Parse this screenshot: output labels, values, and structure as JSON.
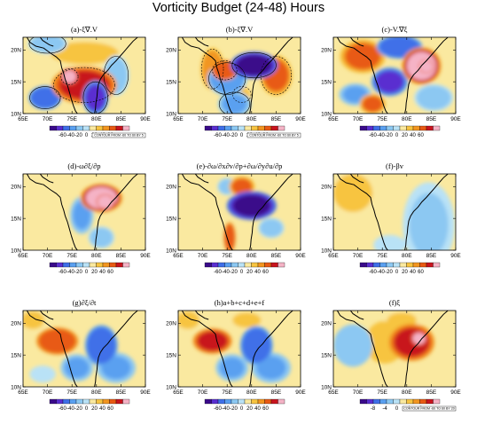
{
  "figure_title": "Vorticity Budget (24-48) Hours",
  "colors": {
    "scale": [
      "#3a0a8a",
      "#5a2fd0",
      "#3f6fe8",
      "#5aa0f0",
      "#8cc8f2",
      "#b9e2f6",
      "#fae9a0",
      "#f7c441",
      "#f29621",
      "#e85a14",
      "#c8141e",
      "#f5b3c6"
    ],
    "coast": "#000000"
  },
  "chart_data": [
    {
      "id": "a",
      "type": "heatmap",
      "title": "(a)-ξ∇.V",
      "x_ticks": [
        "65E",
        "70E",
        "75E",
        "80E",
        "85E",
        "90E"
      ],
      "y_ticks": [
        "10N",
        "15N",
        "20N"
      ],
      "colorbar_labels": [
        "-60",
        "-40",
        "-20",
        "0",
        "20",
        "40",
        "60"
      ],
      "contour_note": "CONTOUR FROM -60 TO 60 BY 5",
      "blobs": [
        {
          "lon": 77.5,
          "lat": 14.5,
          "value": 50,
          "rx": 5,
          "ry": 2.2
        },
        {
          "lon": 74.5,
          "lat": 15.8,
          "value": 65,
          "rx": 1.4,
          "ry": 1.0
        },
        {
          "lon": 77.5,
          "lat": 19.5,
          "value": 15,
          "rx": 6,
          "ry": 1.5
        },
        {
          "lon": 69.5,
          "lat": 12.5,
          "value": -45,
          "rx": 2.5,
          "ry": 1.4
        },
        {
          "lon": 79.8,
          "lat": 12.5,
          "value": -55,
          "rx": 2,
          "ry": 2
        },
        {
          "lon": 84,
          "lat": 16,
          "value": -20,
          "rx": 2,
          "ry": 2.4
        },
        {
          "lon": 70,
          "lat": 21,
          "value": -20,
          "rx": 3,
          "ry": 1.2
        }
      ]
    },
    {
      "id": "b",
      "type": "heatmap",
      "title": "(b)-ξ∇.V",
      "x_ticks": [
        "65E",
        "70E",
        "75E",
        "80E",
        "85E",
        "90E"
      ],
      "y_ticks": [
        "10N",
        "15N",
        "20N"
      ],
      "colorbar_labels": [
        "-60",
        "-40",
        "-20",
        "0",
        "20",
        "40",
        "60"
      ],
      "contour_note": "CONTOUR FROM -60 TO 60 BY 5",
      "blobs": [
        {
          "lon": 80.5,
          "lat": 17.6,
          "value": -62,
          "rx": 3.6,
          "ry": 1.6
        },
        {
          "lon": 75,
          "lat": 15.5,
          "value": -35,
          "rx": 3,
          "ry": 2
        },
        {
          "lon": 76.5,
          "lat": 11.5,
          "value": -25,
          "rx": 2.5,
          "ry": 1.5
        },
        {
          "lon": 74.5,
          "lat": 16.8,
          "value": 45,
          "rx": 2,
          "ry": 1.2
        },
        {
          "lon": 72,
          "lat": 17,
          "value": 30,
          "rx": 1.8,
          "ry": 2.5
        },
        {
          "lon": 85,
          "lat": 16,
          "value": 35,
          "rx": 2.5,
          "ry": 2.4
        },
        {
          "lon": 78,
          "lat": 13,
          "value": 20,
          "rx": 1.5,
          "ry": 1
        }
      ]
    },
    {
      "id": "c",
      "type": "heatmap",
      "title": "(c)-V.∇ξ",
      "x_ticks": [
        "65E",
        "70E",
        "75E",
        "80E",
        "85E",
        "90E"
      ],
      "y_ticks": [
        "10N",
        "15N",
        "20N"
      ],
      "colorbar_labels": [
        "-60",
        "-40",
        "-20",
        "0",
        "20",
        "40",
        "60"
      ],
      "blobs": [
        {
          "lon": 83,
          "lat": 17.5,
          "value": 60,
          "rx": 3,
          "ry": 2.2
        },
        {
          "lon": 84,
          "lat": 17.4,
          "value": 75,
          "rx": 1.2,
          "ry": 0.8
        },
        {
          "lon": 71,
          "lat": 19,
          "value": 40,
          "rx": 3.5,
          "ry": 2
        },
        {
          "lon": 76.5,
          "lat": 15,
          "value": -55,
          "rx": 2.8,
          "ry": 1.7
        },
        {
          "lon": 78.5,
          "lat": 20.5,
          "value": -45,
          "rx": 3.5,
          "ry": 1.4
        },
        {
          "lon": 69.5,
          "lat": 13,
          "value": -25,
          "rx": 2.5,
          "ry": 1.3
        },
        {
          "lon": 85.5,
          "lat": 12.5,
          "value": -20,
          "rx": 3,
          "ry": 1.6
        },
        {
          "lon": 73,
          "lat": 11.5,
          "value": 35,
          "rx": 2,
          "ry": 1.2
        }
      ]
    },
    {
      "id": "d",
      "type": "heatmap",
      "title": "(d)-ω∂ξ/∂p",
      "x_ticks": [
        "65E",
        "70E",
        "75E",
        "80E",
        "85E",
        "90E"
      ],
      "y_ticks": [
        "10N",
        "15N",
        "20N"
      ],
      "colorbar_labels": [
        "-60",
        "-40",
        "-20",
        "0",
        "20",
        "40",
        "60"
      ],
      "blobs": [
        {
          "lon": 81,
          "lat": 18.2,
          "value": 60,
          "rx": 3.2,
          "ry": 1.7
        },
        {
          "lon": 81.8,
          "lat": 17.6,
          "value": 75,
          "rx": 1.4,
          "ry": 0.9
        },
        {
          "lon": 77,
          "lat": 15.5,
          "value": -25,
          "rx": 1.8,
          "ry": 2.2
        },
        {
          "lon": 81,
          "lat": 12,
          "value": -15,
          "rx": 2,
          "ry": 1.3
        }
      ]
    },
    {
      "id": "e",
      "type": "heatmap",
      "title": "(e)-∂ω/∂x∂v/∂p+∂ω/∂y∂u/∂p",
      "x_ticks": [
        "65E",
        "70E",
        "75E",
        "80E",
        "85E",
        "90E"
      ],
      "y_ticks": [
        "10N",
        "15N",
        "20N"
      ],
      "colorbar_labels": [
        "-60",
        "-40",
        "-20",
        "0",
        "20",
        "40",
        "60"
      ],
      "blobs": [
        {
          "lon": 80,
          "lat": 17,
          "value": -65,
          "rx": 3.8,
          "ry": 1.7
        },
        {
          "lon": 75.5,
          "lat": 12,
          "value": 45,
          "rx": 0.9,
          "ry": 1.8
        },
        {
          "lon": 78,
          "lat": 20,
          "value": 35,
          "rx": 2,
          "ry": 1.2
        },
        {
          "lon": 75,
          "lat": 20,
          "value": -20,
          "rx": 1.5,
          "ry": 1
        },
        {
          "lon": 84,
          "lat": 13.5,
          "value": -15,
          "rx": 2,
          "ry": 1.2
        }
      ]
    },
    {
      "id": "f",
      "type": "heatmap",
      "title": "(f)-βv",
      "x_ticks": [
        "65E",
        "70E",
        "75E",
        "80E",
        "85E",
        "90E"
      ],
      "y_ticks": [
        "10N",
        "15N",
        "20N"
      ],
      "colorbar_labels": [
        "-60",
        "-40",
        "-20",
        "0",
        "20",
        "40",
        "60"
      ],
      "blobs": [
        {
          "lon": 69,
          "lat": 19,
          "value": 12,
          "rx": 4,
          "ry": 3
        },
        {
          "lon": 84.5,
          "lat": 14,
          "value": -12,
          "rx": 4,
          "ry": 5
        },
        {
          "lon": 76.5,
          "lat": 10.8,
          "value": -8,
          "rx": 2.5,
          "ry": 1.2
        }
      ]
    },
    {
      "id": "g",
      "type": "heatmap",
      "title": "(g)∂ξ/∂t",
      "x_ticks": [
        "65E",
        "70E",
        "75E",
        "80E",
        "85E",
        "90E"
      ],
      "y_ticks": [
        "10N",
        "15N",
        "20N"
      ],
      "colorbar_labels": [
        "-60",
        "-40",
        "-20",
        "0",
        "20",
        "40",
        "60"
      ],
      "blobs": [
        {
          "lon": 72,
          "lat": 17.2,
          "value": 45,
          "rx": 3.2,
          "ry": 1.6
        },
        {
          "lon": 81,
          "lat": 16.5,
          "value": -45,
          "rx": 2.5,
          "ry": 2.4
        },
        {
          "lon": 76,
          "lat": 13,
          "value": -25,
          "rx": 2.5,
          "ry": 1.6
        },
        {
          "lon": 84,
          "lat": 13,
          "value": -25,
          "rx": 3,
          "ry": 1.8
        },
        {
          "lon": 67,
          "lat": 20.5,
          "value": 15,
          "rx": 2,
          "ry": 1.2
        },
        {
          "lon": 69,
          "lat": 12,
          "value": -10,
          "rx": 2,
          "ry": 1
        }
      ]
    },
    {
      "id": "h",
      "type": "heatmap",
      "title": "(h)a+b+c+d+e+f",
      "x_ticks": [
        "65E",
        "70E",
        "75E",
        "80E",
        "85E",
        "90E"
      ],
      "y_ticks": [
        "10N",
        "15N",
        "20N"
      ],
      "colorbar_labels": [
        "-60",
        "-40",
        "-20",
        "0",
        "20",
        "40",
        "60"
      ],
      "blobs": [
        {
          "lon": 72,
          "lat": 17.2,
          "value": 50,
          "rx": 3,
          "ry": 1.5
        },
        {
          "lon": 81,
          "lat": 16.5,
          "value": -45,
          "rx": 2.5,
          "ry": 2.3
        },
        {
          "lon": 76,
          "lat": 13,
          "value": -25,
          "rx": 2.5,
          "ry": 1.6
        },
        {
          "lon": 84,
          "lat": 13,
          "value": -25,
          "rx": 3,
          "ry": 1.8
        },
        {
          "lon": 79,
          "lat": 20.5,
          "value": 20,
          "rx": 2.5,
          "ry": 1
        },
        {
          "lon": 67,
          "lat": 20.5,
          "value": 15,
          "rx": 2,
          "ry": 1.2
        }
      ]
    },
    {
      "id": "i",
      "type": "heatmap",
      "title": "(f)ξ",
      "x_ticks": [
        "65E",
        "70E",
        "75E",
        "80E",
        "85E",
        "90E"
      ],
      "y_ticks": [
        "10N",
        "15N",
        "20N"
      ],
      "colorbar_labels": [
        "-8",
        "-4",
        "0",
        "4",
        "8"
      ],
      "contour_note": "CONTOUR FROM -60 TO 60 BY 20",
      "blobs": [
        {
          "lon": 81,
          "lat": 17,
          "value": 7,
          "rx": 3.5,
          "ry": 2.2
        },
        {
          "lon": 82.5,
          "lat": 17.6,
          "value": 9.5,
          "rx": 1.3,
          "ry": 0.9
        },
        {
          "lon": 75.5,
          "lat": 17,
          "value": 3,
          "rx": 3,
          "ry": 2.5
        },
        {
          "lon": 79,
          "lat": 20.5,
          "value": 2,
          "rx": 3,
          "ry": 1.2
        },
        {
          "lon": 69,
          "lat": 16.5,
          "value": -3,
          "rx": 3,
          "ry": 2.5
        }
      ]
    }
  ]
}
